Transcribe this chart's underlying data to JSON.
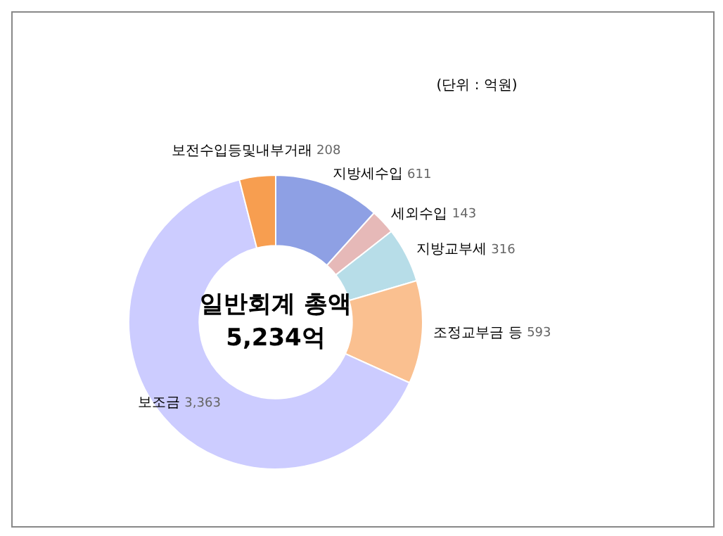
{
  "chart_data": {
    "type": "donut",
    "title": "일반회계 총액",
    "subtitle": "5,234억",
    "annotations": [
      "(단위 : 억원)"
    ],
    "categories": [
      "지방세수입",
      "세외수입",
      "지방교부세",
      "조정교부금 등",
      "보조금",
      "보전수입등및내부거래"
    ],
    "values": [
      611,
      143,
      316,
      593,
      3363,
      208
    ],
    "value_labels": [
      "611",
      "143",
      "316",
      "593",
      "3,363",
      "208"
    ],
    "colors": [
      "#8ea0e4",
      "#e6b9b8",
      "#b7dde8",
      "#fac090",
      "#ccccff",
      "#f79e50"
    ],
    "legend": false
  }
}
